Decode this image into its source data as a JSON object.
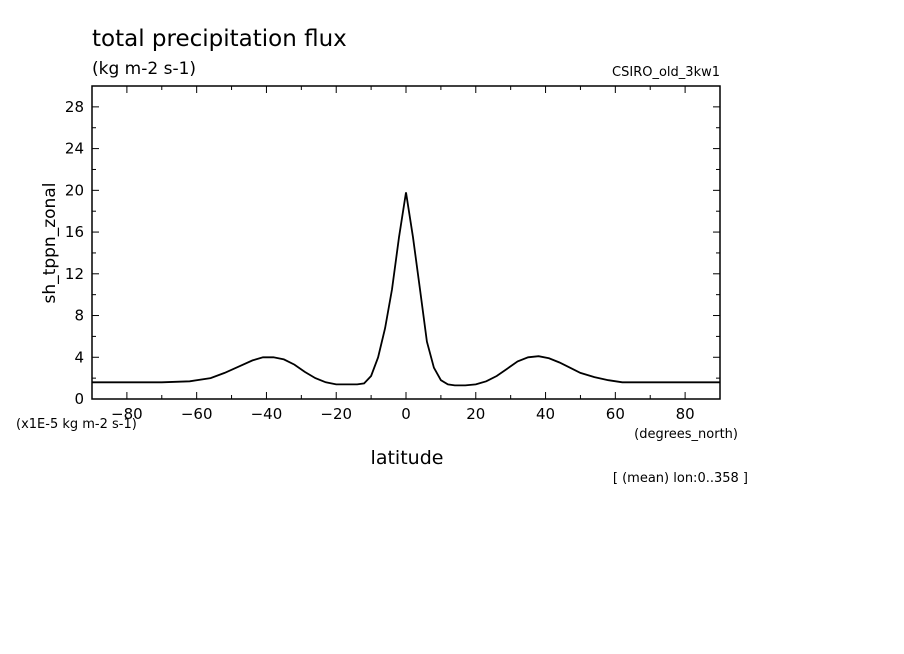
{
  "chart_data": {
    "type": "line",
    "title": "total precipitation flux",
    "subtitle": "(kg m-2 s-1)",
    "dataset": "CSIRO_old_3kw1",
    "xlabel": "latitude",
    "xunits": "(degrees_north)",
    "ylabel": "sh_tppn_zonal",
    "yscale_note": "(x1E-5 kg m-2 s-1)",
    "footnote": "[ (mean) lon:0..358 ]",
    "xlim": [
      -90,
      90
    ],
    "ylim": [
      0,
      30
    ],
    "xticks": [
      -80,
      -60,
      -40,
      -20,
      0,
      20,
      40,
      60,
      80
    ],
    "yticks": [
      0,
      4,
      8,
      12,
      16,
      20,
      24,
      28
    ],
    "grid": false,
    "line_color": "#000000",
    "series": [
      {
        "x": [
          -90,
          -80,
          -70,
          -62,
          -56,
          -52,
          -48,
          -44,
          -41,
          -38,
          -35,
          -32,
          -29,
          -26,
          -23,
          -20,
          -17,
          -14,
          -12,
          -10,
          -8,
          -6,
          -4,
          -2,
          0,
          2,
          4,
          6,
          8,
          10,
          12,
          14,
          17,
          20,
          23,
          26,
          29,
          32,
          35,
          38,
          41,
          44,
          47,
          50,
          54,
          58,
          62,
          70,
          80,
          90
        ],
        "y": [
          1.6,
          1.6,
          1.6,
          1.7,
          2.0,
          2.5,
          3.1,
          3.7,
          4.0,
          4.0,
          3.8,
          3.3,
          2.6,
          2.0,
          1.6,
          1.4,
          1.4,
          1.4,
          1.5,
          2.2,
          4.0,
          6.8,
          10.5,
          15.5,
          19.8,
          15.5,
          10.5,
          5.5,
          3.0,
          1.8,
          1.4,
          1.3,
          1.3,
          1.4,
          1.7,
          2.2,
          2.9,
          3.6,
          4.0,
          4.1,
          3.9,
          3.5,
          3.0,
          2.5,
          2.1,
          1.8,
          1.6,
          1.6,
          1.6,
          1.6
        ]
      }
    ]
  }
}
